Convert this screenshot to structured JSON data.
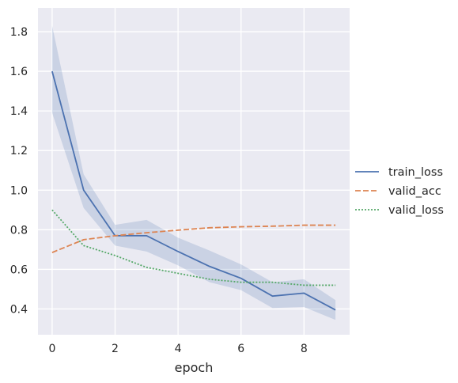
{
  "chart_data": {
    "type": "line",
    "title": "",
    "xlabel": "epoch",
    "ylabel": "",
    "xlim": [
      -0.45,
      9.45
    ],
    "ylim": [
      0.27,
      1.92
    ],
    "xticks": [
      0,
      2,
      4,
      6,
      8
    ],
    "yticks": [
      0.4,
      0.6,
      0.8,
      1.0,
      1.2,
      1.4,
      1.6,
      1.8
    ],
    "xtick_labels": [
      "0",
      "2",
      "4",
      "6",
      "8"
    ],
    "ytick_labels": [
      "0.4",
      "0.6",
      "0.8",
      "1.0",
      "1.2",
      "1.4",
      "1.6",
      "1.8"
    ],
    "grid": true,
    "legend_position": "right",
    "x": [
      0,
      1,
      2,
      3,
      4,
      5,
      6,
      7,
      8,
      9
    ],
    "series": [
      {
        "name": "train_loss",
        "color": "#4c72b0",
        "dash": "solid",
        "values": [
          1.6,
          1.0,
          0.77,
          0.77,
          0.69,
          0.615,
          0.555,
          0.465,
          0.48,
          0.395
        ],
        "band_lower": [
          1.39,
          0.91,
          0.72,
          0.69,
          0.62,
          0.535,
          0.495,
          0.405,
          0.41,
          0.345
        ],
        "band_upper": [
          1.83,
          1.08,
          0.825,
          0.85,
          0.76,
          0.695,
          0.625,
          0.535,
          0.55,
          0.445
        ]
      },
      {
        "name": "valid_acc",
        "color": "#dd8452",
        "dash": "dashed",
        "values": [
          0.685,
          0.75,
          0.77,
          0.785,
          0.798,
          0.81,
          0.815,
          0.818,
          0.823,
          0.823
        ]
      },
      {
        "name": "valid_loss",
        "color": "#55a868",
        "dash": "dotted",
        "values": [
          0.9,
          0.72,
          0.67,
          0.61,
          0.58,
          0.55,
          0.535,
          0.535,
          0.52,
          0.52
        ]
      }
    ]
  }
}
